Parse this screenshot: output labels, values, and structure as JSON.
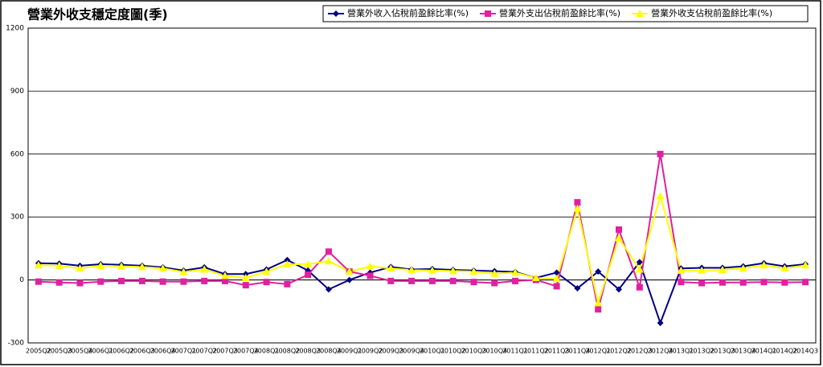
{
  "chart_data": {
    "type": "line",
    "title": "營業外收支穩定度圖(季)",
    "categories": [
      "2005Q2",
      "2005Q3",
      "2005Q4",
      "2006Q1",
      "2006Q2",
      "2006Q3",
      "2006Q4",
      "2007Q1",
      "2007Q2",
      "2007Q3",
      "2007Q4",
      "2008Q1",
      "2008Q2",
      "2008Q3",
      "2008Q4",
      "2009Q1",
      "2009Q2",
      "2009Q3",
      "2009Q4",
      "2010Q1",
      "2010Q2",
      "2010Q3",
      "2010Q4",
      "2011Q1",
      "2011Q2",
      "2011Q3",
      "2011Q4",
      "2012Q1",
      "2012Q2",
      "2012Q3",
      "2012Q4",
      "2013Q1",
      "2013Q2",
      "2013Q3",
      "2013Q4",
      "2014Q1",
      "2014Q2",
      "2014Q3"
    ],
    "series": [
      {
        "name": "營業外收入佔稅前盈餘比率(%)",
        "color": "#000080",
        "marker": "diamond",
        "values": [
          80,
          78,
          68,
          75,
          72,
          68,
          60,
          45,
          60,
          28,
          28,
          50,
          95,
          45,
          -45,
          0,
          35,
          62,
          50,
          52,
          48,
          45,
          42,
          38,
          10,
          35,
          -40,
          40,
          -45,
          85,
          -205,
          55,
          58,
          58,
          65,
          80,
          65,
          75
        ]
      },
      {
        "name": "營業外支出佔稅前盈餘比率(%)",
        "color": "#e020a0",
        "marker": "square",
        "values": [
          -8,
          -12,
          -15,
          -8,
          -5,
          -5,
          -8,
          -8,
          -5,
          -5,
          -25,
          -10,
          -20,
          25,
          135,
          40,
          20,
          -5,
          -5,
          -5,
          -5,
          -10,
          -15,
          -5,
          0,
          -30,
          370,
          -140,
          240,
          -35,
          600,
          -10,
          -15,
          -12,
          -12,
          -10,
          -12,
          -10
        ]
      },
      {
        "name": "營業外收支佔稅前盈餘比率(%)",
        "color": "#ffff00",
        "marker": "triangle",
        "values": [
          70,
          68,
          55,
          68,
          65,
          62,
          55,
          38,
          50,
          20,
          10,
          40,
          75,
          75,
          90,
          40,
          65,
          55,
          47,
          45,
          43,
          40,
          30,
          35,
          10,
          5,
          340,
          -110,
          200,
          50,
          400,
          45,
          45,
          48,
          55,
          70,
          55,
          70
        ]
      }
    ],
    "ylim": [
      -300,
      1200
    ],
    "yticks": [
      -300,
      0,
      300,
      600,
      900,
      1200
    ],
    "grid": true,
    "legend": "top-right"
  }
}
